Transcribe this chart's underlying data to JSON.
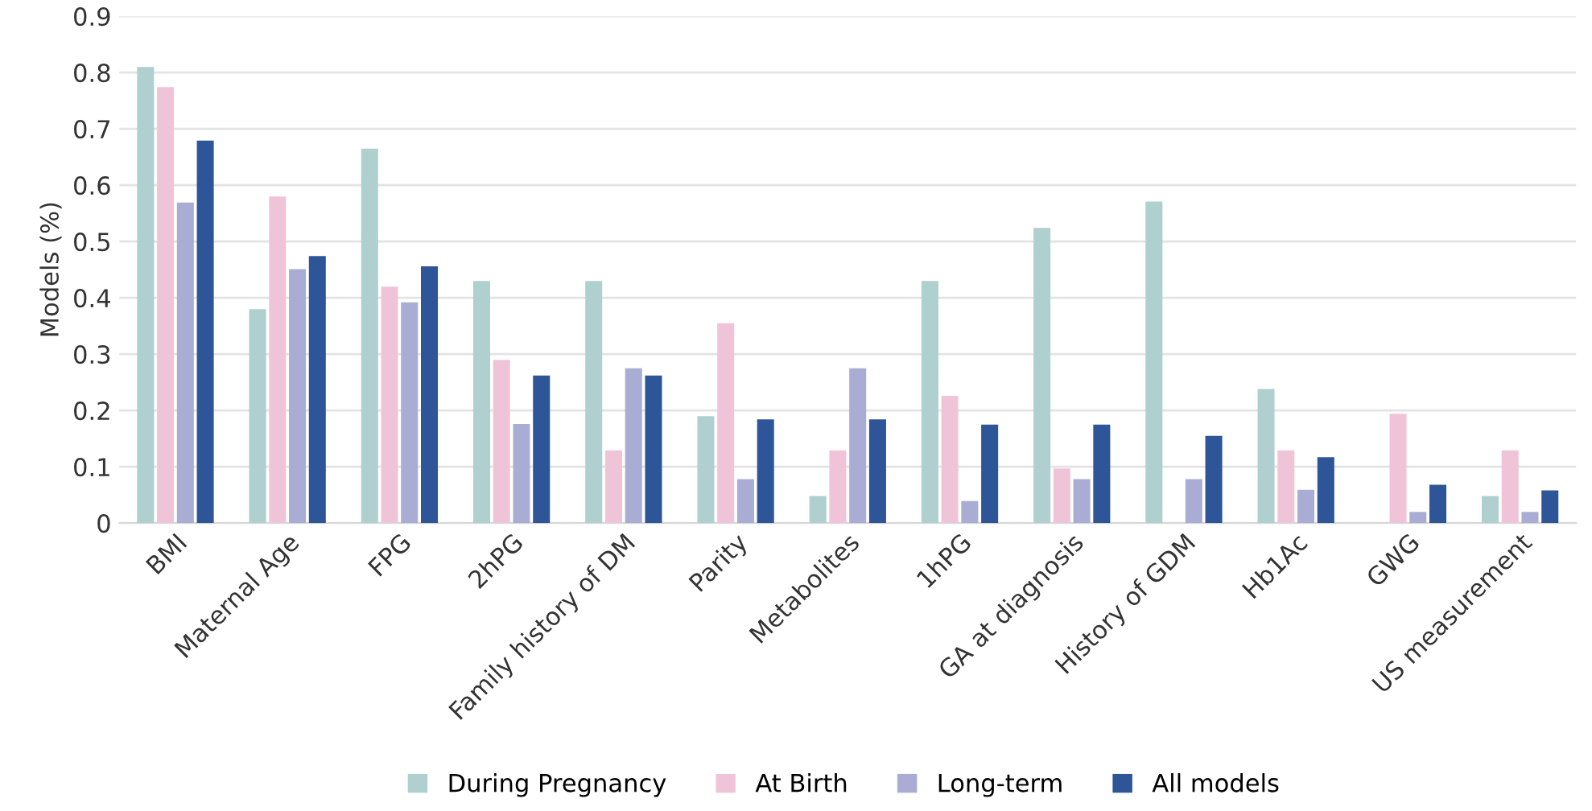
{
  "chart_data": {
    "type": "bar",
    "ylabel": "Models (%)",
    "categories": [
      "BMI",
      "Maternal Age",
      "FPG",
      "2hPG",
      "Family history of DM",
      "Parity",
      "Metabolites",
      "1hPG",
      "GA at diagnosis",
      "History of GDM",
      "Hb1Ac",
      "GWG",
      "US measurement"
    ],
    "series": [
      {
        "name": "During Pregnancy",
        "color": "#b0cfcf",
        "values": [
          0.81,
          0.38,
          0.665,
          0.43,
          0.43,
          0.19,
          0.048,
          0.43,
          0.524,
          0.571,
          0.238,
          0,
          0.048
        ]
      },
      {
        "name": "At Birth",
        "color": "#f0c4d8",
        "values": [
          0.774,
          0.58,
          0.42,
          0.29,
          0.129,
          0.355,
          0.129,
          0.226,
          0.097,
          0,
          0.129,
          0.194,
          0.129
        ]
      },
      {
        "name": "Long-term",
        "color": "#a9add3",
        "values": [
          0.569,
          0.451,
          0.392,
          0.176,
          0.275,
          0.078,
          0.275,
          0.039,
          0.078,
          0.078,
          0.059,
          0.02,
          0.02
        ]
      },
      {
        "name": "All models",
        "color": "#2e5597",
        "values": [
          0.679,
          0.474,
          0.456,
          0.262,
          0.262,
          0.184,
          0.184,
          0.175,
          0.175,
          0.155,
          0.117,
          0.068,
          0.058
        ]
      }
    ],
    "ylim": [
      0,
      0.9
    ],
    "yticks": [
      {
        "value": 0,
        "label": "0"
      },
      0.1,
      0.2,
      0.3,
      0.4,
      0.5,
      0.6,
      0.7,
      0.8,
      0.9
    ],
    "grid": "y",
    "legend": "bottom"
  }
}
